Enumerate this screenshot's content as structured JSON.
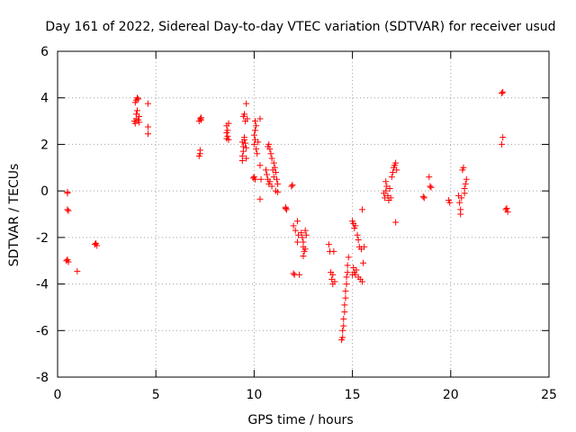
{
  "chart_data": {
    "type": "scatter",
    "title": "Day 161 of 2022, Sidereal Day-to-day VTEC variation (SDTVAR) for receiver usud",
    "xlabel": "GPS time / hours",
    "ylabel": "SDTVAR / TECUs",
    "xlim": [
      0,
      25
    ],
    "ylim": [
      -8,
      6
    ],
    "xticks": [
      0,
      5,
      10,
      15,
      20,
      25
    ],
    "yticks": [
      -8,
      -6,
      -4,
      -2,
      0,
      2,
      4,
      6
    ],
    "grid": true,
    "marker": "+",
    "color": "#ff0000",
    "points": [
      [
        0.5,
        -0.05
      ],
      [
        0.5,
        -0.1
      ],
      [
        0.55,
        -0.85
      ],
      [
        0.5,
        -0.8
      ],
      [
        0.5,
        -2.95
      ],
      [
        0.55,
        -3.05
      ],
      [
        0.45,
        -3.0
      ],
      [
        1.0,
        -3.45
      ],
      [
        1.9,
        -2.3
      ],
      [
        1.95,
        -2.25
      ],
      [
        2.0,
        -2.35
      ],
      [
        3.9,
        3.0
      ],
      [
        3.95,
        2.9
      ],
      [
        4.0,
        3.1
      ],
      [
        4.0,
        3.3
      ],
      [
        4.05,
        3.45
      ],
      [
        3.95,
        3.8
      ],
      [
        4.0,
        3.9
      ],
      [
        4.05,
        4.0
      ],
      [
        4.1,
        3.95
      ],
      [
        4.1,
        3.05
      ],
      [
        4.15,
        3.2
      ],
      [
        4.15,
        2.95
      ],
      [
        4.6,
        3.75
      ],
      [
        4.6,
        2.75
      ],
      [
        4.6,
        2.45
      ],
      [
        7.2,
        1.5
      ],
      [
        7.25,
        1.6
      ],
      [
        7.25,
        1.75
      ],
      [
        7.2,
        3.0
      ],
      [
        7.25,
        3.1
      ],
      [
        7.3,
        3.15
      ],
      [
        7.3,
        3.05
      ],
      [
        8.6,
        2.25
      ],
      [
        8.65,
        2.35
      ],
      [
        8.6,
        2.5
      ],
      [
        8.65,
        2.6
      ],
      [
        8.6,
        2.8
      ],
      [
        8.7,
        2.9
      ],
      [
        8.7,
        2.2
      ],
      [
        9.4,
        1.3
      ],
      [
        9.4,
        1.5
      ],
      [
        9.45,
        1.7
      ],
      [
        9.45,
        1.9
      ],
      [
        9.4,
        2.1
      ],
      [
        9.5,
        2.3
      ],
      [
        9.5,
        2.2
      ],
      [
        9.45,
        3.2
      ],
      [
        9.5,
        3.3
      ],
      [
        9.55,
        3.0
      ],
      [
        9.6,
        3.75
      ],
      [
        9.55,
        2.05
      ],
      [
        9.6,
        1.85
      ],
      [
        9.6,
        1.4
      ],
      [
        9.65,
        3.1
      ],
      [
        9.95,
        0.55
      ],
      [
        10.0,
        0.6
      ],
      [
        10.05,
        0.5
      ],
      [
        10.0,
        2.0
      ],
      [
        10.05,
        2.2
      ],
      [
        10.0,
        2.4
      ],
      [
        10.05,
        2.6
      ],
      [
        10.1,
        2.8
      ],
      [
        10.05,
        3.0
      ],
      [
        10.1,
        1.8
      ],
      [
        10.15,
        1.6
      ],
      [
        10.2,
        2.1
      ],
      [
        10.3,
        1.1
      ],
      [
        10.3,
        -0.35
      ],
      [
        10.3,
        3.1
      ],
      [
        10.35,
        0.5
      ],
      [
        10.6,
        0.9
      ],
      [
        10.65,
        0.7
      ],
      [
        10.7,
        0.5
      ],
      [
        10.75,
        0.3
      ],
      [
        10.7,
        1.9
      ],
      [
        10.75,
        2.0
      ],
      [
        10.8,
        1.8
      ],
      [
        10.8,
        0.4
      ],
      [
        10.85,
        1.6
      ],
      [
        10.9,
        1.4
      ],
      [
        10.9,
        0.2
      ],
      [
        10.95,
        0.9
      ],
      [
        11.0,
        1.2
      ],
      [
        11.0,
        0.6
      ],
      [
        11.05,
        1.0
      ],
      [
        11.1,
        0.8
      ],
      [
        11.1,
        0.0
      ],
      [
        11.15,
        0.5
      ],
      [
        11.2,
        0.3
      ],
      [
        11.2,
        -0.05
      ],
      [
        11.6,
        -0.7
      ],
      [
        11.65,
        -0.8
      ],
      [
        11.6,
        -0.75
      ],
      [
        11.9,
        0.2
      ],
      [
        11.95,
        0.25
      ],
      [
        12.0,
        -1.5
      ],
      [
        12.0,
        -3.55
      ],
      [
        12.05,
        -3.6
      ],
      [
        12.1,
        -1.7
      ],
      [
        12.2,
        -1.3
      ],
      [
        12.25,
        -1.9
      ],
      [
        12.2,
        -2.2
      ],
      [
        12.3,
        -3.6
      ],
      [
        12.4,
        -1.8
      ],
      [
        12.45,
        -2.0
      ],
      [
        12.5,
        -2.2
      ],
      [
        12.5,
        -2.4
      ],
      [
        12.55,
        -2.6
      ],
      [
        12.5,
        -2.8
      ],
      [
        12.6,
        -1.7
      ],
      [
        12.6,
        -2.5
      ],
      [
        12.65,
        -1.9
      ],
      [
        13.8,
        -2.3
      ],
      [
        13.85,
        -2.6
      ],
      [
        13.9,
        -3.5
      ],
      [
        13.95,
        -3.8
      ],
      [
        14.0,
        -4.0
      ],
      [
        14.05,
        -2.6
      ],
      [
        14.0,
        -3.6
      ],
      [
        14.1,
        -3.9
      ],
      [
        14.45,
        -6.4
      ],
      [
        14.5,
        -6.3
      ],
      [
        14.5,
        -6.0
      ],
      [
        14.55,
        -5.8
      ],
      [
        14.55,
        -5.5
      ],
      [
        14.6,
        -5.2
      ],
      [
        14.6,
        -4.9
      ],
      [
        14.65,
        -4.6
      ],
      [
        14.65,
        -4.3
      ],
      [
        14.7,
        -4.0
      ],
      [
        14.7,
        -3.7
      ],
      [
        14.75,
        -3.5
      ],
      [
        14.75,
        -3.2
      ],
      [
        14.8,
        -2.85
      ],
      [
        15.0,
        -1.3
      ],
      [
        15.05,
        -1.4
      ],
      [
        15.1,
        -1.6
      ],
      [
        15.15,
        -1.5
      ],
      [
        15.1,
        -3.5
      ],
      [
        15.15,
        -3.6
      ],
      [
        15.2,
        -3.4
      ],
      [
        15.25,
        -1.9
      ],
      [
        15.3,
        -2.1
      ],
      [
        15.35,
        -2.4
      ],
      [
        15.3,
        -3.7
      ],
      [
        15.4,
        -3.8
      ],
      [
        15.45,
        -2.5
      ],
      [
        15.5,
        -3.9
      ],
      [
        15.5,
        -0.8
      ],
      [
        15.55,
        -3.1
      ],
      [
        15.6,
        -2.4
      ],
      [
        15.0,
        -3.6
      ],
      [
        15.05,
        -3.3
      ],
      [
        16.6,
        -0.1
      ],
      [
        16.65,
        -0.3
      ],
      [
        16.7,
        0.0
      ],
      [
        16.7,
        0.4
      ],
      [
        16.75,
        0.2
      ],
      [
        16.8,
        -0.2
      ],
      [
        16.85,
        -0.4
      ],
      [
        16.9,
        0.1
      ],
      [
        16.95,
        -0.3
      ],
      [
        17.0,
        0.6
      ],
      [
        17.05,
        0.8
      ],
      [
        17.1,
        1.0
      ],
      [
        17.15,
        1.1
      ],
      [
        17.2,
        1.2
      ],
      [
        17.25,
        0.9
      ],
      [
        17.2,
        -1.35
      ],
      [
        18.6,
        -0.25
      ],
      [
        18.65,
        -0.3
      ],
      [
        18.9,
        0.6
      ],
      [
        18.95,
        0.2
      ],
      [
        19.0,
        0.15
      ],
      [
        19.9,
        -0.4
      ],
      [
        19.95,
        -0.5
      ],
      [
        20.4,
        -0.2
      ],
      [
        20.45,
        -0.5
      ],
      [
        20.5,
        -0.8
      ],
      [
        20.5,
        -1.0
      ],
      [
        20.55,
        -0.3
      ],
      [
        20.6,
        0.9
      ],
      [
        20.65,
        1.0
      ],
      [
        20.7,
        0.1
      ],
      [
        20.7,
        -0.1
      ],
      [
        20.75,
        0.3
      ],
      [
        20.8,
        0.5
      ],
      [
        22.6,
        4.2
      ],
      [
        22.65,
        4.25
      ],
      [
        22.6,
        2.0
      ],
      [
        22.65,
        2.3
      ],
      [
        22.8,
        -0.8
      ],
      [
        22.85,
        -0.75
      ],
      [
        22.9,
        -0.9
      ]
    ]
  }
}
